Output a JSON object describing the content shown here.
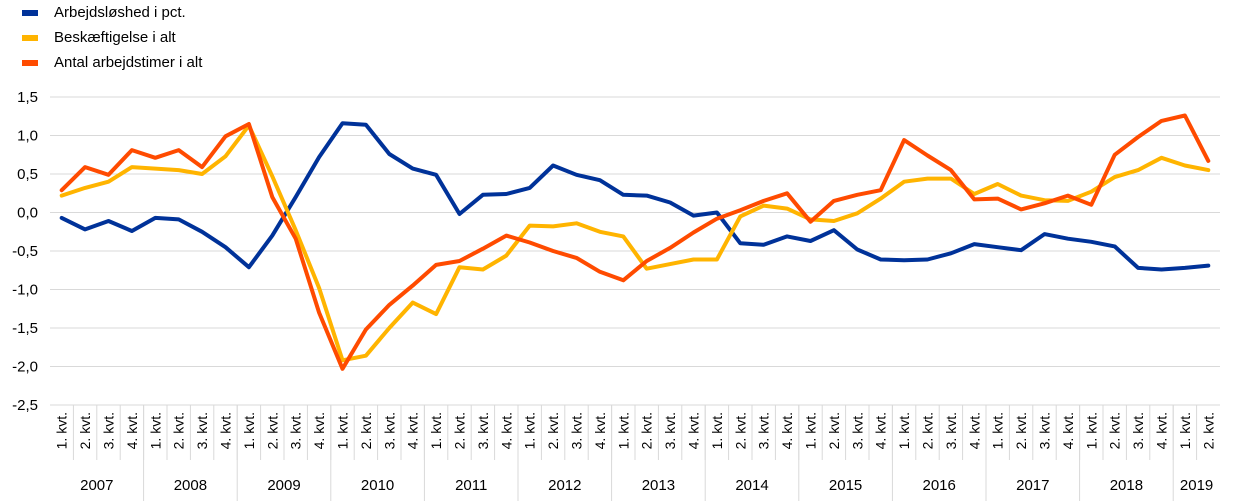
{
  "chart_data": {
    "type": "line",
    "legend_position": "top-left",
    "grid": "horizontal",
    "ylim": [
      -2.5,
      1.5
    ],
    "yticks": [
      "1,5",
      "1,0",
      "0,5",
      "0,0",
      "-0,5",
      "-1,0",
      "-1,5",
      "-2,0",
      "-2,5"
    ],
    "ytick_values": [
      1.5,
      1.0,
      0.5,
      0.0,
      -0.5,
      -1.0,
      -1.5,
      -2.0,
      -2.5
    ],
    "quarter_labels": [
      "1. kvt.",
      "2. kvt.",
      "3. kvt.",
      "4. kvt."
    ],
    "x": [
      "1. kvt. 2007",
      "2. kvt. 2007",
      "3. kvt. 2007",
      "4. kvt. 2007",
      "1. kvt. 2008",
      "2. kvt. 2008",
      "3. kvt. 2008",
      "4. kvt. 2008",
      "1. kvt. 2009",
      "2. kvt. 2009",
      "3. kvt. 2009",
      "4. kvt. 2009",
      "1. kvt. 2010",
      "2. kvt. 2010",
      "3. kvt. 2010",
      "4. kvt. 2010",
      "1. kvt. 2011",
      "2. kvt. 2011",
      "3. kvt. 2011",
      "4. kvt. 2011",
      "1. kvt. 2012",
      "2. kvt. 2012",
      "3. kvt. 2012",
      "4. kvt. 2012",
      "1. kvt. 2013",
      "2. kvt. 2013",
      "3. kvt. 2013",
      "4. kvt. 2013",
      "1. kvt. 2014",
      "2. kvt. 2014",
      "3. kvt. 2014",
      "4. kvt. 2014",
      "1. kvt. 2015",
      "2. kvt. 2015",
      "3. kvt. 2015",
      "4. kvt. 2015",
      "1. kvt. 2016",
      "2. kvt. 2016",
      "3. kvt. 2016",
      "4. kvt. 2016",
      "1. kvt. 2017",
      "2. kvt. 2017",
      "3. kvt. 2017",
      "4. kvt. 2017",
      "1. kvt. 2018",
      "2. kvt. 2018",
      "3. kvt. 2018",
      "4. kvt. 2018",
      "1. kvt. 2019",
      "2. kvt. 2019"
    ],
    "years": [
      {
        "label": "2007",
        "quarters": 4
      },
      {
        "label": "2008",
        "quarters": 4
      },
      {
        "label": "2009",
        "quarters": 4
      },
      {
        "label": "2010",
        "quarters": 4
      },
      {
        "label": "2011",
        "quarters": 4
      },
      {
        "label": "2012",
        "quarters": 4
      },
      {
        "label": "2013",
        "quarters": 4
      },
      {
        "label": "2014",
        "quarters": 4
      },
      {
        "label": "2015",
        "quarters": 4
      },
      {
        "label": "2016",
        "quarters": 4
      },
      {
        "label": "2017",
        "quarters": 4
      },
      {
        "label": "2018",
        "quarters": 4
      },
      {
        "label": "2019",
        "quarters": 2
      }
    ],
    "series": [
      {
        "name": "Arbejdsløshed i pct.",
        "color": "#003299",
        "values": [
          -0.07,
          -0.22,
          -0.11,
          -0.24,
          -0.07,
          -0.09,
          -0.25,
          -0.45,
          -0.71,
          -0.3,
          0.2,
          0.72,
          1.16,
          1.14,
          0.76,
          0.57,
          0.49,
          -0.02,
          0.23,
          0.24,
          0.32,
          0.61,
          0.49,
          0.42,
          0.23,
          0.22,
          0.13,
          -0.04,
          0.0,
          -0.4,
          -0.42,
          -0.31,
          -0.37,
          -0.23,
          -0.48,
          -0.61,
          -0.62,
          -0.61,
          -0.53,
          -0.41,
          -0.45,
          -0.49,
          -0.28,
          -0.34,
          -0.38,
          -0.44,
          -0.72,
          -0.74,
          -0.72,
          -0.69
        ]
      },
      {
        "name": "Beskæftigelse i alt",
        "color": "#FFB400",
        "values": [
          0.22,
          0.32,
          0.4,
          0.59,
          0.57,
          0.55,
          0.5,
          0.73,
          1.13,
          0.47,
          -0.23,
          -0.98,
          -1.92,
          -1.86,
          -1.5,
          -1.17,
          -1.32,
          -0.71,
          -0.74,
          -0.56,
          -0.17,
          -0.18,
          -0.14,
          -0.25,
          -0.31,
          -0.73,
          -0.67,
          -0.61,
          -0.61,
          -0.05,
          0.09,
          0.05,
          -0.09,
          -0.11,
          -0.01,
          0.18,
          0.4,
          0.44,
          0.44,
          0.24,
          0.37,
          0.22,
          0.16,
          0.15,
          0.27,
          0.46,
          0.55,
          0.71,
          0.61,
          0.55
        ]
      },
      {
        "name": "Antal arbejdstimer i alt",
        "color": "#FF4B00",
        "values": [
          0.29,
          0.59,
          0.49,
          0.81,
          0.71,
          0.81,
          0.59,
          0.99,
          1.15,
          0.2,
          -0.34,
          -1.3,
          -2.03,
          -1.52,
          -1.2,
          -0.95,
          -0.68,
          -0.63,
          -0.47,
          -0.3,
          -0.39,
          -0.5,
          -0.59,
          -0.77,
          -0.88,
          -0.63,
          -0.46,
          -0.26,
          -0.08,
          0.03,
          0.15,
          0.25,
          -0.12,
          0.15,
          0.23,
          0.29,
          0.94,
          0.74,
          0.55,
          0.17,
          0.18,
          0.04,
          0.12,
          0.22,
          0.1,
          0.75,
          0.98,
          1.19,
          1.26,
          0.67
        ]
      }
    ]
  }
}
